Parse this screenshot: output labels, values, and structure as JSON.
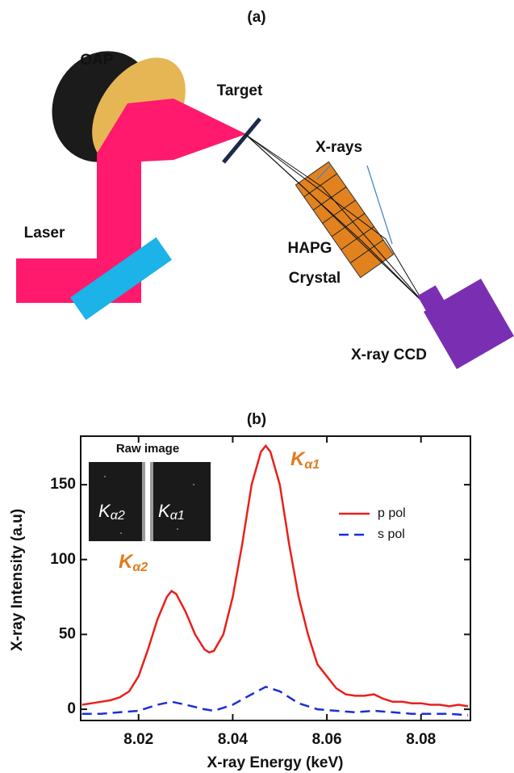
{
  "diagram": {
    "title": "(a)",
    "labels": {
      "oap": "OAP",
      "target": "Target",
      "xrays": "X-rays",
      "laser": "Laser",
      "crystal_1": "HAPG",
      "crystal_2": "Crystal",
      "ccd": "X-ray CCD"
    }
  },
  "chart_data": {
    "type": "line",
    "title": "(b)",
    "xlabel": "X-ray Energy (keV)",
    "ylabel": "X-ray Intensity (a.u)",
    "xlim": [
      8.0077,
      8.0905
    ],
    "xticks": [
      8.02,
      8.04,
      8.06,
      8.08
    ],
    "ylim": [
      -7.5,
      182.4
    ],
    "yticks": [
      0,
      50,
      100,
      150
    ],
    "legend": "upper right",
    "series": [
      {
        "name": "p pol",
        "color": "#e8201c",
        "line_style": "solid",
        "x": [
          8.008,
          8.01,
          8.012,
          8.014,
          8.016,
          8.018,
          8.02,
          8.022,
          8.024,
          8.026,
          8.027,
          8.028,
          8.03,
          8.032,
          8.034,
          8.035,
          8.036,
          8.038,
          8.04,
          8.042,
          8.044,
          8.046,
          8.047,
          8.048,
          8.05,
          8.052,
          8.054,
          8.056,
          8.058,
          8.06,
          8.062,
          8.064,
          8.066,
          8.068,
          8.07,
          8.072,
          8.074,
          8.076,
          8.078,
          8.08,
          8.082,
          8.084,
          8.086,
          8.088,
          8.09
        ],
        "values": [
          3,
          4,
          5,
          6,
          8,
          12,
          22,
          40,
          60,
          75,
          79,
          77,
          65,
          50,
          40,
          38,
          39,
          50,
          75,
          110,
          150,
          172,
          176,
          172,
          150,
          110,
          75,
          50,
          30,
          22,
          14,
          10,
          9,
          9,
          10,
          7,
          5,
          5,
          4,
          4,
          3,
          3,
          2,
          3,
          2
        ]
      },
      {
        "name": "s pol",
        "color": "#1a2fd6",
        "line_style": "dashed",
        "x": [
          8.008,
          8.012,
          8.016,
          8.02,
          8.024,
          8.027,
          8.03,
          8.034,
          8.036,
          8.04,
          8.044,
          8.047,
          8.05,
          8.054,
          8.058,
          8.062,
          8.066,
          8.07,
          8.074,
          8.078,
          8.082,
          8.086,
          8.09
        ],
        "values": [
          -3,
          -3,
          -2,
          -1,
          3,
          5,
          3,
          0,
          -1,
          3,
          10,
          15,
          12,
          4,
          0,
          -1,
          -2,
          -1,
          -2,
          -3,
          -3,
          -3,
          -4
        ]
      }
    ],
    "annotations": {
      "k_alpha1": {
        "base": "K",
        "sub": "α1"
      },
      "k_alpha2": {
        "base": "K",
        "sub": "α2"
      }
    },
    "inset": {
      "title": "Raw image",
      "k_alpha2": {
        "base": "K",
        "sub": "α2"
      },
      "k_alpha1": {
        "base": "K",
        "sub": "α1"
      }
    }
  }
}
